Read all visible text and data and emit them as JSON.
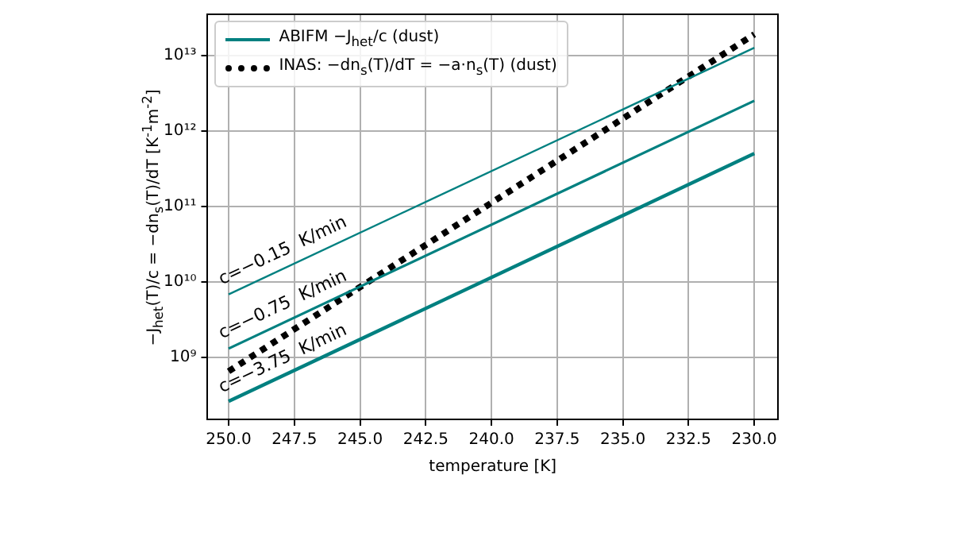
{
  "chart_data": {
    "type": "line",
    "xlabel": "temperature [K]",
    "ylabel": "−J$_{het}$(T)/c = −dn$_{s}$(T)/dT  [K$^{-1}$m$^{-2}$]",
    "x": [
      250,
      230
    ],
    "series": [
      {
        "name": "ABIFM −J$_{het}$/c (dust)",
        "color": "#008080",
        "values": [
          6800000000.0,
          12600000000000.0
        ],
        "line_style": "solid"
      },
      {
        "color": "#008080",
        "values": [
          1300000000.0,
          2500000000000.0
        ],
        "line_style": "solid"
      },
      {
        "color": "#008080",
        "values": [
          260000000.0,
          500000000000.0
        ],
        "line_style": "solid"
      },
      {
        "name": "INAS: −dn$_{s}$(T)/dT = −a·n$_{s}$(T) (dust)",
        "color": "#000000",
        "values": [
          650000000.0,
          19000000000000.0
        ],
        "line_style": "dotted"
      }
    ],
    "xlim": [
      250.8,
      229.1
    ],
    "xticks": [
      {
        "value": 250,
        "label": "250.0"
      },
      {
        "value": 247.5,
        "label": "247.5"
      },
      {
        "value": 245,
        "label": "245.0"
      },
      {
        "value": 242.5,
        "label": "242.5"
      },
      {
        "value": 240,
        "label": "240.0"
      },
      {
        "value": 237.5,
        "label": "237.5"
      },
      {
        "value": 235,
        "label": "235.0"
      },
      {
        "value": 232.5,
        "label": "232.5"
      },
      {
        "value": 230,
        "label": "230.0"
      }
    ],
    "ylim": [
      150000000.0,
      35000000000000.0
    ],
    "yticks": [
      {
        "value": 1000000000.0,
        "label": "10⁹"
      },
      {
        "value": 10000000000.0,
        "label": "10¹⁰"
      },
      {
        "value": 100000000000.0,
        "label": "10¹¹"
      },
      {
        "value": 1000000000000.0,
        "label": "10¹²"
      },
      {
        "value": 10000000000000.0,
        "label": "10¹³"
      }
    ],
    "log": "y",
    "grid": true,
    "legend": "top left",
    "marker": "none",
    "annotations": [
      "c=−0.15  K/min",
      "c=−0.75  K/min",
      "c=−3.75  K/min"
    ]
  }
}
